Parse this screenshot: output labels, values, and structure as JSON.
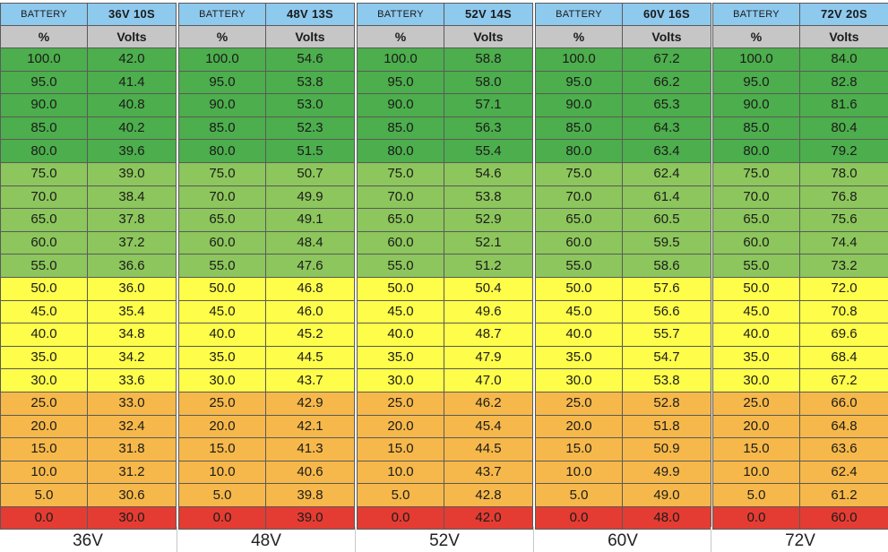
{
  "colors": {
    "header_blue": "#8ec9ee",
    "subheader_gray": "#c6c6c6",
    "dark_green": "#4cae4c",
    "light_green": "#8cc65c",
    "yellow": "#fefd4a",
    "orange": "#f6b84a",
    "red": "#e43c32"
  },
  "header_label": "BATTERY",
  "subheader": {
    "percent": "%",
    "volts": "Volts"
  },
  "percent_rows": [
    "100.0",
    "95.0",
    "90.0",
    "85.0",
    "80.0",
    "75.0",
    "70.0",
    "65.0",
    "60.0",
    "55.0",
    "50.0",
    "45.0",
    "40.0",
    "35.0",
    "30.0",
    "25.0",
    "20.0",
    "15.0",
    "10.0",
    "5.0",
    "0.0"
  ],
  "row_bands": [
    "dark_green",
    "dark_green",
    "dark_green",
    "dark_green",
    "dark_green",
    "light_green",
    "light_green",
    "light_green",
    "light_green",
    "light_green",
    "yellow",
    "yellow",
    "yellow",
    "yellow",
    "yellow",
    "orange",
    "orange",
    "orange",
    "orange",
    "orange",
    "red"
  ],
  "tables": [
    {
      "title": "36V 10S",
      "caption": "36V",
      "volts": [
        "42.0",
        "41.4",
        "40.8",
        "40.2",
        "39.6",
        "39.0",
        "38.4",
        "37.8",
        "37.2",
        "36.6",
        "36.0",
        "35.4",
        "34.8",
        "34.2",
        "33.6",
        "33.0",
        "32.4",
        "31.8",
        "31.2",
        "30.6",
        "30.0"
      ]
    },
    {
      "title": "48V 13S",
      "caption": "48V",
      "volts": [
        "54.6",
        "53.8",
        "53.0",
        "52.3",
        "51.5",
        "50.7",
        "49.9",
        "49.1",
        "48.4",
        "47.6",
        "46.8",
        "46.0",
        "45.2",
        "44.5",
        "43.7",
        "42.9",
        "42.1",
        "41.3",
        "40.6",
        "39.8",
        "39.0"
      ]
    },
    {
      "title": "52V 14S",
      "caption": "52V",
      "volts": [
        "58.8",
        "58.0",
        "57.1",
        "56.3",
        "55.4",
        "54.6",
        "53.8",
        "52.9",
        "52.1",
        "51.2",
        "50.4",
        "49.6",
        "48.7",
        "47.9",
        "47.0",
        "46.2",
        "45.4",
        "44.5",
        "43.7",
        "42.8",
        "42.0"
      ]
    },
    {
      "title": "60V 16S",
      "caption": "60V",
      "volts": [
        "67.2",
        "66.2",
        "65.3",
        "64.3",
        "63.4",
        "62.4",
        "61.4",
        "60.5",
        "59.5",
        "58.6",
        "57.6",
        "56.6",
        "55.7",
        "54.7",
        "53.8",
        "52.8",
        "51.8",
        "50.9",
        "49.9",
        "49.0",
        "48.0"
      ]
    },
    {
      "title": "72V 20S",
      "caption": "72V",
      "volts": [
        "84.0",
        "82.8",
        "81.6",
        "80.4",
        "79.2",
        "78.0",
        "76.8",
        "75.6",
        "74.4",
        "73.2",
        "72.0",
        "70.8",
        "69.6",
        "68.4",
        "67.2",
        "66.0",
        "64.8",
        "63.6",
        "62.4",
        "61.2",
        "60.0"
      ]
    }
  ]
}
